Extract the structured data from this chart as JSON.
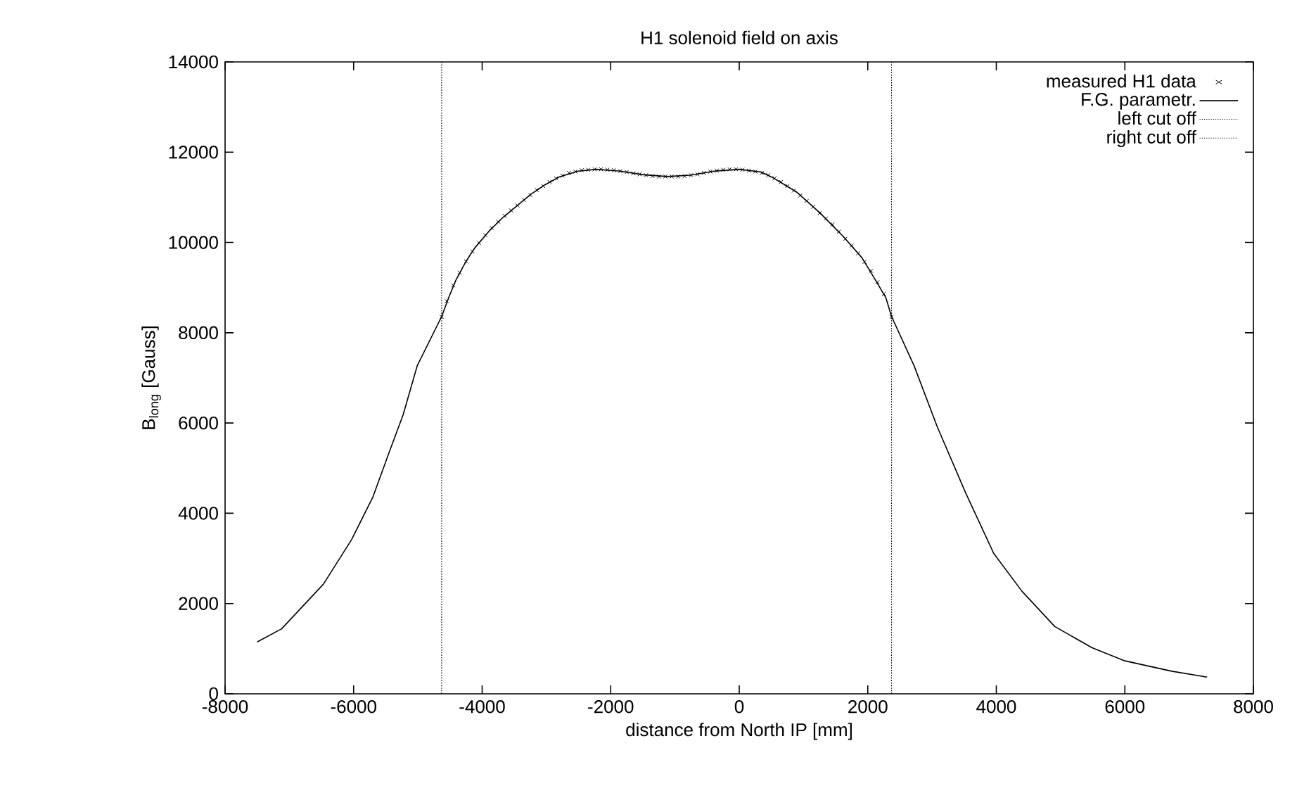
{
  "chart_data": {
    "type": "line",
    "title": "H1 solenoid field on axis",
    "xlabel": "distance from North IP [mm]",
    "ylabel": "B$_{long}$ [Gauss]",
    "xlim": [
      -8000,
      8000
    ],
    "ylim": [
      0,
      14000
    ],
    "xticks": [
      -8000,
      -6000,
      -4000,
      -2000,
      0,
      2000,
      4000,
      6000,
      8000
    ],
    "yticks": [
      0,
      2000,
      4000,
      6000,
      8000,
      10000,
      12000,
      14000
    ],
    "grid": false,
    "legend": "top right",
    "series": [
      {
        "name": "measured H1 data",
        "type": "scatter",
        "marker": "cross",
        "color": "#000000",
        "x": [
          -4630,
          -4550,
          -4450,
          -4350,
          -4250,
          -4150,
          -4050,
          -3950,
          -3850,
          -3750,
          -3650,
          -3550,
          -3450,
          -3350,
          -3250,
          -3150,
          -3050,
          -2950,
          -2850,
          -2750,
          -2650,
          -2550,
          -2450,
          -2350,
          -2250,
          -2150,
          -2050,
          -1950,
          -1850,
          -1750,
          -1650,
          -1550,
          -1450,
          -1350,
          -1250,
          -1150,
          -1050,
          -950,
          -850,
          -750,
          -650,
          -550,
          -450,
          -350,
          -250,
          -150,
          -50,
          50,
          150,
          250,
          350,
          450,
          550,
          650,
          750,
          850,
          950,
          1050,
          1150,
          1250,
          1350,
          1450,
          1550,
          1650,
          1750,
          1850,
          1950,
          2050,
          2150,
          2250,
          2370
        ],
        "values": [
          8350,
          8700,
          9050,
          9330,
          9580,
          9800,
          9990,
          10160,
          10320,
          10460,
          10590,
          10710,
          10820,
          10940,
          11050,
          11160,
          11250,
          11340,
          11420,
          11480,
          11540,
          11570,
          11600,
          11610,
          11620,
          11620,
          11610,
          11600,
          11580,
          11560,
          11530,
          11510,
          11490,
          11470,
          11460,
          11460,
          11460,
          11460,
          11470,
          11490,
          11510,
          11540,
          11570,
          11590,
          11610,
          11620,
          11620,
          11610,
          11590,
          11570,
          11540,
          11490,
          11420,
          11340,
          11250,
          11150,
          11040,
          10920,
          10790,
          10650,
          10530,
          10400,
          10240,
          10080,
          9930,
          9760,
          9570,
          9370,
          9120,
          8860,
          8350
        ]
      },
      {
        "name": "F.G. parametr.",
        "marker": "none",
        "line_style": "solid",
        "color": "#000000",
        "x": [
          -7500,
          -7120,
          -6470,
          -6030,
          -5700,
          -5450,
          -5230,
          -5010,
          -4630,
          -4520,
          -4410,
          -4260,
          -4120,
          -3900,
          -3680,
          -3460,
          -3240,
          -3020,
          -2800,
          -2510,
          -2220,
          -1850,
          -1490,
          -1120,
          -760,
          -390,
          0,
          340,
          530,
          890,
          1260,
          1620,
          1910,
          2130,
          2280,
          2370,
          2720,
          3080,
          3520,
          3960,
          4400,
          4910,
          5490,
          6000,
          6730,
          7280
        ],
        "values": [
          1150,
          1440,
          2430,
          3420,
          4360,
          5340,
          6180,
          7270,
          8360,
          8780,
          9160,
          9560,
          9870,
          10240,
          10550,
          10810,
          11070,
          11280,
          11450,
          11580,
          11620,
          11580,
          11500,
          11460,
          11490,
          11580,
          11620,
          11560,
          11430,
          11120,
          10650,
          10130,
          9660,
          9140,
          8780,
          8360,
          7270,
          5920,
          4460,
          3110,
          2270,
          1490,
          1020,
          730,
          500,
          370
        ]
      },
      {
        "name": "left cut off",
        "marker": "none",
        "line_style": "dotted",
        "color": "#000000",
        "x": [
          -4630,
          -4630
        ],
        "values": [
          0,
          14000
        ]
      },
      {
        "name": "right cut off",
        "marker": "none",
        "line_style": "dotted",
        "color": "#000000",
        "x": [
          2370,
          2370
        ],
        "values": [
          0,
          14000
        ]
      }
    ]
  }
}
